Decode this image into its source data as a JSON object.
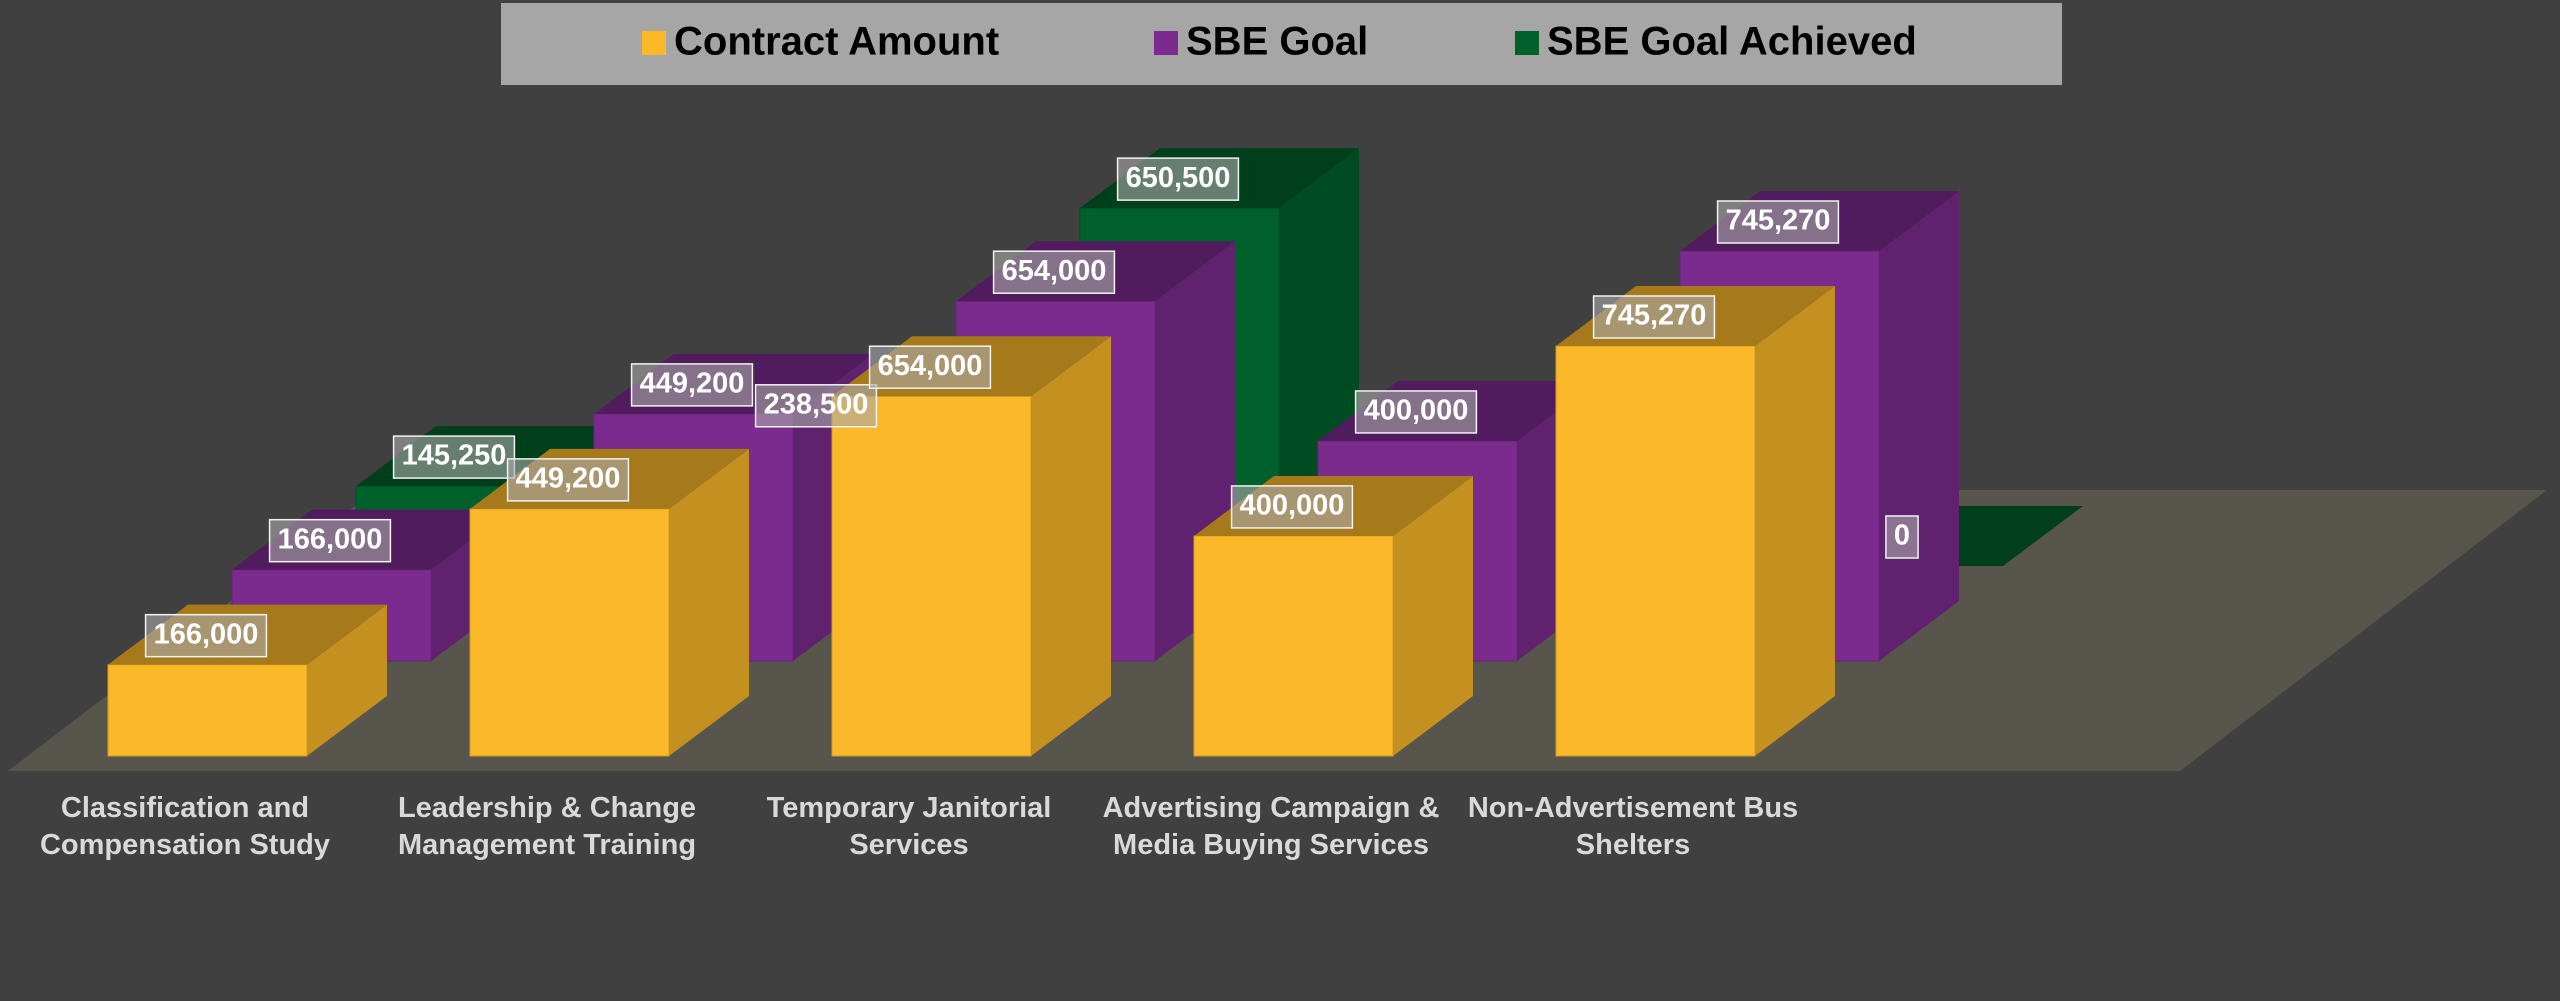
{
  "chart_data": {
    "type": "bar3d",
    "categories": [
      "Classification and Compensation Study",
      "Leadership & Change Management Training",
      "Temporary Janitorial Services",
      "Advertising Campaign & Media Buying Services",
      "Non-Advertisement Bus Shelters"
    ],
    "series": [
      {
        "name": "Contract Amount",
        "color": "#fbb829",
        "values": [
          166000,
          449200,
          654000,
          400000,
          745270
        ],
        "value_labels": [
          "166,000",
          "449,200",
          "654,000",
          "400,000",
          "745,270"
        ]
      },
      {
        "name": "SBE Goal",
        "color": "#7b2a8e",
        "values": [
          166000,
          449200,
          654000,
          400000,
          745270
        ],
        "value_labels": [
          "166,000",
          "449,200",
          "654,000",
          "400,000",
          "745,270"
        ]
      },
      {
        "name": "SBE Goal Achieved",
        "color": "#00602b",
        "values": [
          145250,
          238500,
          650500,
          null,
          0
        ],
        "value_labels": [
          "145,250",
          "238,500",
          "650,500",
          null,
          "0"
        ]
      }
    ],
    "legend": "top"
  }
}
